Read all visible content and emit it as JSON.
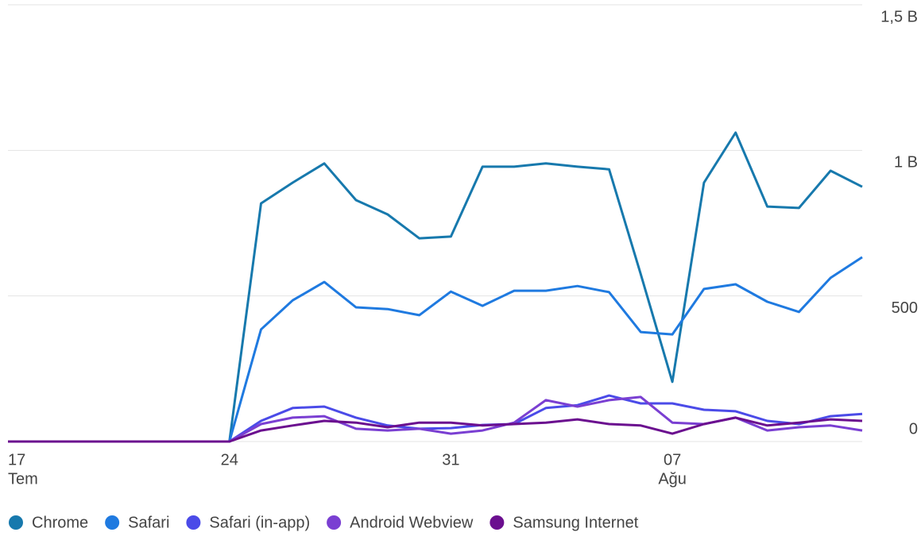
{
  "chart_data": {
    "type": "line",
    "categories": [
      "17",
      null,
      null,
      null,
      null,
      null,
      null,
      "24",
      null,
      null,
      null,
      null,
      null,
      null,
      "31",
      null,
      null,
      null,
      null,
      null,
      null,
      "07",
      null,
      null,
      null,
      null,
      null,
      null
    ],
    "months": [
      {
        "at": 0,
        "label": "Tem"
      },
      {
        "at": 21,
        "label": "Ağu"
      }
    ],
    "series": [
      {
        "name": "Chrome",
        "color": "#1779ad",
        "values": [
          0,
          0,
          0,
          0,
          0,
          0,
          0,
          0,
          818,
          889,
          955,
          829,
          780,
          698,
          704,
          944,
          944,
          955,
          944,
          935,
          575,
          205,
          889,
          1061,
          807,
          802,
          930,
          875
        ]
      },
      {
        "name": "Safari",
        "color": "#1f7ae0",
        "values": [
          0,
          0,
          0,
          0,
          0,
          0,
          0,
          0,
          385,
          485,
          548,
          461,
          455,
          434,
          515,
          466,
          518,
          518,
          534,
          513,
          376,
          368,
          524,
          540,
          480,
          445,
          562,
          633
        ]
      },
      {
        "name": "Safari (in-app)",
        "color": "#4b4be8",
        "values": [
          0,
          0,
          0,
          0,
          0,
          0,
          0,
          0,
          71,
          115,
          120,
          82,
          55,
          44,
          46,
          57,
          60,
          115,
          125,
          158,
          131,
          131,
          109,
          104,
          71,
          60,
          87,
          95
        ]
      },
      {
        "name": "Android Webview",
        "color": "#7a3fd2",
        "values": [
          0,
          0,
          0,
          0,
          0,
          0,
          0,
          0,
          60,
          82,
          87,
          44,
          38,
          44,
          27,
          38,
          65,
          142,
          120,
          142,
          153,
          65,
          60,
          82,
          38,
          49,
          55,
          38
        ]
      },
      {
        "name": "Samsung Internet",
        "color": "#6b0f8f",
        "values": [
          0,
          0,
          0,
          0,
          0,
          0,
          0,
          0,
          38,
          55,
          71,
          65,
          49,
          65,
          65,
          55,
          60,
          65,
          76,
          60,
          55,
          27,
          60,
          82,
          55,
          65,
          76,
          71
        ]
      }
    ],
    "ylim": [
      0,
      1500
    ],
    "yticks": [
      0,
      500,
      {
        "value": 1000,
        "label": "1 B"
      },
      {
        "value": 1500,
        "label": "1,5 B"
      }
    ],
    "grid": true,
    "legend": "bottom"
  }
}
